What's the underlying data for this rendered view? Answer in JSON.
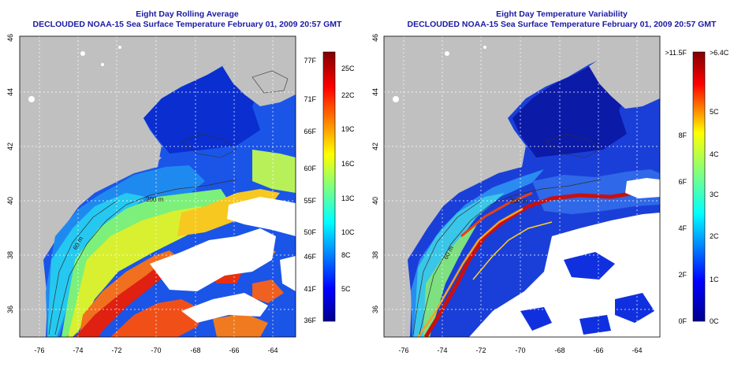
{
  "colors": {
    "land": "#c0c0c0",
    "title": "#1a1aa6",
    "grid": "#ffffff"
  },
  "left_panel": {
    "title": "Eight Day Rolling Average",
    "subtitle": "DECLOUDED NOAA-15 Sea Surface Temperature February 01, 2009 20:57 GMT",
    "lat_labels": [
      "36",
      "38",
      "40",
      "42",
      "44",
      "46"
    ],
    "lon_labels": [
      "-76",
      "-74",
      "-72",
      "-70",
      "-68",
      "-66",
      "-64"
    ],
    "contour_labels": [
      "200 m",
      "60 m"
    ],
    "colorbar": {
      "left_labels": [
        "77F",
        "71F",
        "66F",
        "60F",
        "55F",
        "50F",
        "46F",
        "41F",
        "36F"
      ],
      "right_labels": [
        "25C",
        "22C",
        "19C",
        "16C",
        "13C",
        "10C",
        "8C",
        "5C"
      ]
    }
  },
  "right_panel": {
    "title": "Eight Day Temperature Variability",
    "subtitle": "DECLOUDED NOAA-15 Sea Surface Temperature February 01, 2009 20:57 GMT",
    "lat_labels": [
      "36",
      "38",
      "40",
      "42",
      "44",
      "46"
    ],
    "lon_labels": [
      "-76",
      "-74",
      "-72",
      "-70",
      "-68",
      "-66",
      "-64"
    ],
    "contour_labels": [
      "200 m",
      "60 m"
    ],
    "colorbar": {
      "left_labels": [
        ">11.5F",
        "8F",
        "6F",
        "4F",
        "2F",
        "0F"
      ],
      "right_labels": [
        ">6.4C",
        "5C",
        "4C",
        "3C",
        "2C",
        "1C",
        "0C"
      ]
    }
  }
}
